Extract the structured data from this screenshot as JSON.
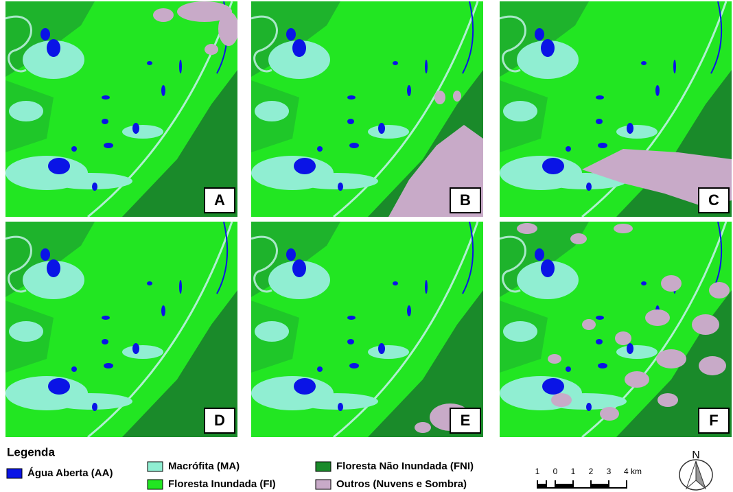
{
  "panels": [
    {
      "label": "A"
    },
    {
      "label": "B"
    },
    {
      "label": "C"
    },
    {
      "label": "D"
    },
    {
      "label": "E"
    },
    {
      "label": "F"
    }
  ],
  "legend": {
    "title": "Legenda",
    "items": [
      {
        "label": "Água Aberta (AA)",
        "color": "#0a14e6"
      },
      {
        "label": "Macrófita (MA)",
        "color": "#90eed2"
      },
      {
        "label": "Floresta Inundada (FI)",
        "color": "#22e622"
      },
      {
        "label": "Floresta Não Inundada (FNI)",
        "color": "#1a8a2a"
      },
      {
        "label": "Outros (Nuvens e Sombra)",
        "color": "#c8aac8"
      }
    ]
  },
  "scale_bar": {
    "labels": [
      "1",
      "0",
      "1",
      "2",
      "3",
      "4 km"
    ]
  },
  "north_arrow": {
    "label": "N"
  }
}
